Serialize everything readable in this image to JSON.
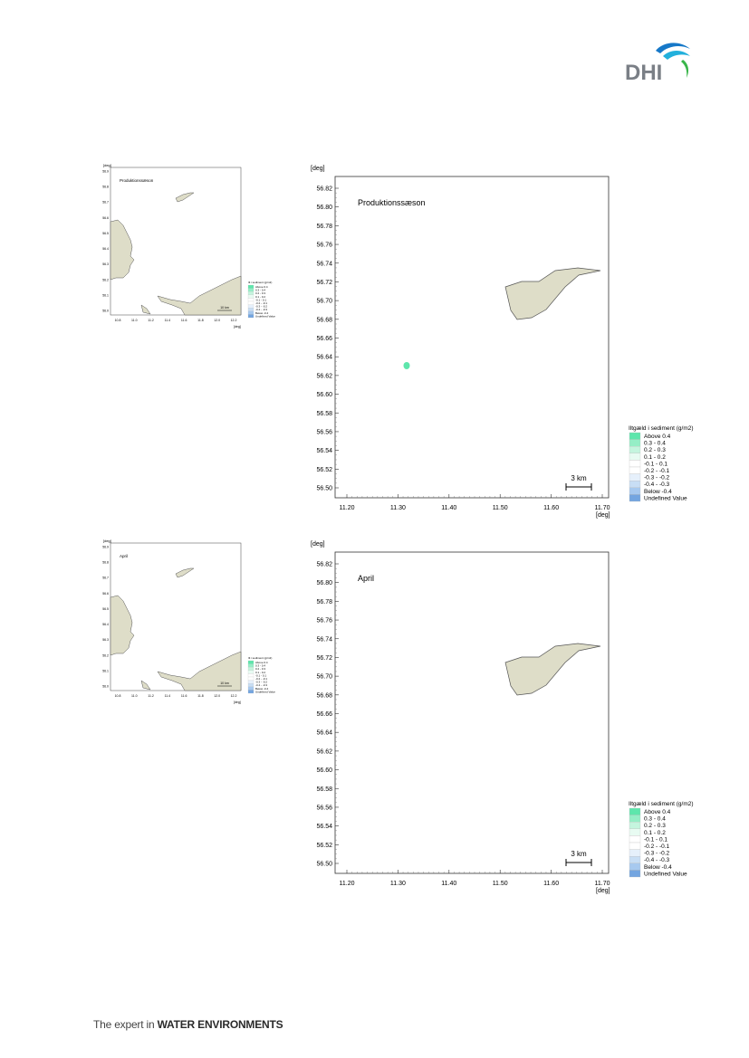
{
  "header": {
    "logo_text": "DHI"
  },
  "footer": {
    "lead": "The expert in ",
    "bold": "WATER ENVIRONMENTS"
  },
  "colors": {
    "land": "#deddc8",
    "land_edge": "#555555",
    "plume": "#5ee6ac",
    "legend_greens": [
      "#5ee6ac",
      "#95eec6",
      "#c4f5de",
      "#e8fbf2"
    ],
    "legend_whites": [
      "#ffffff",
      "#ffffff"
    ],
    "legend_blues": [
      "#e6f0fb",
      "#c8def5",
      "#a7c9ef",
      "#73a5e0"
    ],
    "legend_undefined": "#deddc8",
    "logo_blue": "#1678c8",
    "logo_cyan": "#22b0dc",
    "logo_green": "#39b54a",
    "logo_text": "#7a7f86"
  },
  "maps": [
    {
      "title": "Produktionssæson",
      "show_plume": true,
      "overview": {
        "title": "Produktionssæson",
        "y_unit": "[deg]",
        "x_unit": "[deg]",
        "y_ticks": [
          "56.9",
          "56.8",
          "56.7",
          "56.6",
          "56.5",
          "56.4",
          "56.3",
          "56.2",
          "56.1",
          "56.0"
        ],
        "x_ticks": [
          "10.8",
          "11.0",
          "11.2",
          "11.4",
          "11.6",
          "11.8",
          "12.0",
          "12.2"
        ],
        "scale_label": "10 km",
        "legend_title": "Ilt i sediment (g/m2)",
        "legend_items": [
          "Above 0.4",
          "0.3 - 0.4",
          "0.2 - 0.3",
          "0.1 - 0.2",
          "-0.1 - 0.1",
          "-0.2 - -0.1",
          "-0.3 - -0.2",
          "-0.4 - -0.3",
          "Below -0.4",
          "Undefined Value"
        ]
      },
      "main": {
        "y_unit": "[deg]",
        "x_unit": "[deg]",
        "y_ticks": [
          "56.82",
          "56.80",
          "56.78",
          "56.76",
          "56.74",
          "56.72",
          "56.70",
          "56.68",
          "56.66",
          "56.64",
          "56.62",
          "56.60",
          "56.58",
          "56.56",
          "56.54",
          "56.52",
          "56.50"
        ],
        "x_ticks": [
          "11.20",
          "11.30",
          "11.40",
          "11.50",
          "11.60",
          "11.70"
        ],
        "scale_label": "3 km"
      },
      "legend": {
        "title": "Iltgæld i sediment (g/m2)",
        "items": [
          "Above  0.4",
          "0.3 -  0.4",
          "0.2 -  0.3",
          "0.1 -  0.2",
          "-0.1 -  0.1",
          "-0.2 - -0.1",
          "-0.3 - -0.2",
          "-0.4 - -0.3",
          "Below -0.4",
          "Undefined Value"
        ]
      }
    },
    {
      "title": "April",
      "show_plume": false,
      "overview": {
        "title": "April",
        "y_unit": "[deg]",
        "x_unit": "[deg]",
        "y_ticks": [
          "56.9",
          "56.8",
          "56.7",
          "56.6",
          "56.5",
          "56.4",
          "56.3",
          "56.2",
          "56.1",
          "56.0"
        ],
        "x_ticks": [
          "10.8",
          "11.0",
          "11.2",
          "11.4",
          "11.6",
          "11.8",
          "12.0",
          "12.2"
        ],
        "scale_label": "10 km",
        "legend_title": "Ilt i sediment (g/m2)",
        "legend_items": [
          "Above 0.4",
          "0.3 - 0.4",
          "0.2 - 0.3",
          "0.1 - 0.2",
          "-0.1 - 0.1",
          "-0.2 - -0.1",
          "-0.3 - -0.2",
          "-0.4 - -0.3",
          "Below -0.4",
          "Undefined Value"
        ]
      },
      "main": {
        "y_unit": "[deg]",
        "x_unit": "[deg]",
        "y_ticks": [
          "56.82",
          "56.80",
          "56.78",
          "56.76",
          "56.74",
          "56.72",
          "56.70",
          "56.68",
          "56.66",
          "56.64",
          "56.62",
          "56.60",
          "56.58",
          "56.56",
          "56.54",
          "56.52",
          "56.50"
        ],
        "x_ticks": [
          "11.20",
          "11.30",
          "11.40",
          "11.50",
          "11.60",
          "11.70"
        ],
        "scale_label": "3 km"
      },
      "legend": {
        "title": "Iltgæld i sediment (g/m2)",
        "items": [
          "Above  0.4",
          "0.3 -  0.4",
          "0.2 -  0.3",
          "0.1 -  0.2",
          "-0.1 -  0.1",
          "-0.2 - -0.1",
          "-0.3 - -0.2",
          "-0.4 - -0.3",
          "Below -0.4",
          "Undefined Value"
        ]
      }
    }
  ]
}
